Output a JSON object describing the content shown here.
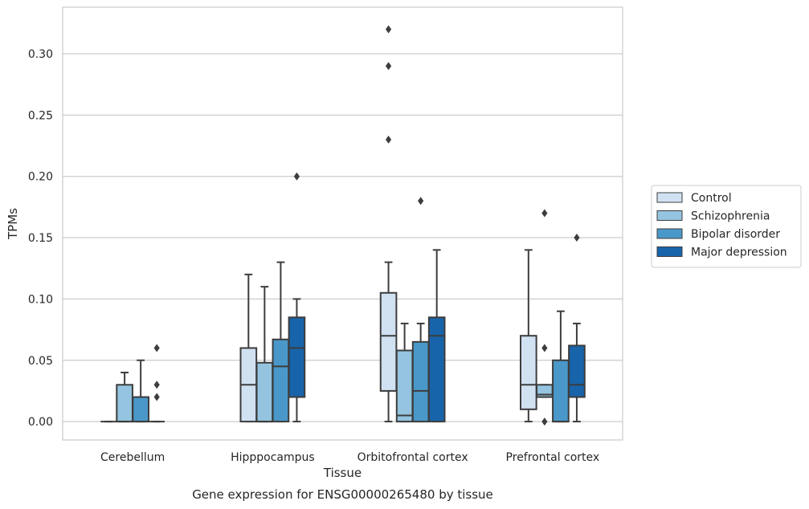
{
  "chart_data": {
    "type": "boxplot",
    "title": "",
    "xlabel": "Tissue",
    "ylabel": "TPMs",
    "caption": "Gene expression for ENSG00000265480 by tissue",
    "ylim": [
      -0.015,
      0.338
    ],
    "yticks": [
      0.0,
      0.05,
      0.1,
      0.15,
      0.2,
      0.25,
      0.3
    ],
    "ytick_labels": [
      "0.00",
      "0.05",
      "0.10",
      "0.15",
      "0.20",
      "0.25",
      "0.30"
    ],
    "grid": "horizontal",
    "legend_position": "right",
    "categories": [
      "Cerebellum",
      "Hipppocampus",
      "Orbitofrontal cortex",
      "Prefrontal cortex"
    ],
    "series": [
      {
        "name": "Control",
        "color": "#d0e1f2",
        "boxes": [
          {
            "whislo": 0.0,
            "q1": 0.0,
            "med": 0.0,
            "q3": 0.0,
            "whishi": 0.0,
            "fliers": []
          },
          {
            "whislo": 0.0,
            "q1": 0.0,
            "med": 0.03,
            "q3": 0.06,
            "whishi": 0.12,
            "fliers": []
          },
          {
            "whislo": 0.0,
            "q1": 0.025,
            "med": 0.07,
            "q3": 0.105,
            "whishi": 0.13,
            "fliers": [
              0.23,
              0.29,
              0.32
            ]
          },
          {
            "whislo": 0.0,
            "q1": 0.01,
            "med": 0.03,
            "q3": 0.07,
            "whishi": 0.14,
            "fliers": []
          }
        ]
      },
      {
        "name": "Schizophrenia",
        "color": "#94c4df",
        "boxes": [
          {
            "whislo": 0.0,
            "q1": 0.0,
            "med": 0.0,
            "q3": 0.03,
            "whishi": 0.04,
            "fliers": []
          },
          {
            "whislo": 0.0,
            "q1": 0.0,
            "med": 0.0,
            "q3": 0.048,
            "whishi": 0.11,
            "fliers": []
          },
          {
            "whislo": 0.0,
            "q1": 0.0,
            "med": 0.005,
            "q3": 0.058,
            "whishi": 0.08,
            "fliers": []
          },
          {
            "whislo": 0.02,
            "q1": 0.02,
            "med": 0.022,
            "q3": 0.03,
            "whishi": 0.03,
            "fliers": [
              0.0,
              0.06,
              0.17
            ]
          }
        ]
      },
      {
        "name": "Bipolar disorder",
        "color": "#4a98c9",
        "boxes": [
          {
            "whislo": 0.0,
            "q1": 0.0,
            "med": 0.0,
            "q3": 0.02,
            "whishi": 0.05,
            "fliers": []
          },
          {
            "whislo": 0.0,
            "q1": 0.0,
            "med": 0.045,
            "q3": 0.067,
            "whishi": 0.13,
            "fliers": []
          },
          {
            "whislo": 0.0,
            "q1": 0.0,
            "med": 0.025,
            "q3": 0.065,
            "whishi": 0.08,
            "fliers": [
              0.18
            ]
          },
          {
            "whislo": 0.0,
            "q1": 0.0,
            "med": 0.0,
            "q3": 0.05,
            "whishi": 0.09,
            "fliers": []
          }
        ]
      },
      {
        "name": "Major depression",
        "color": "#1764ab",
        "boxes": [
          {
            "whislo": 0.0,
            "q1": 0.0,
            "med": 0.0,
            "q3": 0.0,
            "whishi": 0.0,
            "fliers": [
              0.02,
              0.03,
              0.06
            ]
          },
          {
            "whislo": 0.0,
            "q1": 0.02,
            "med": 0.06,
            "q3": 0.085,
            "whishi": 0.1,
            "fliers": [
              0.2
            ]
          },
          {
            "whislo": 0.0,
            "q1": 0.0,
            "med": 0.07,
            "q3": 0.085,
            "whishi": 0.14,
            "fliers": []
          },
          {
            "whislo": 0.0,
            "q1": 0.02,
            "med": 0.03,
            "q3": 0.062,
            "whishi": 0.08,
            "fliers": [
              0.15
            ]
          }
        ]
      }
    ]
  }
}
